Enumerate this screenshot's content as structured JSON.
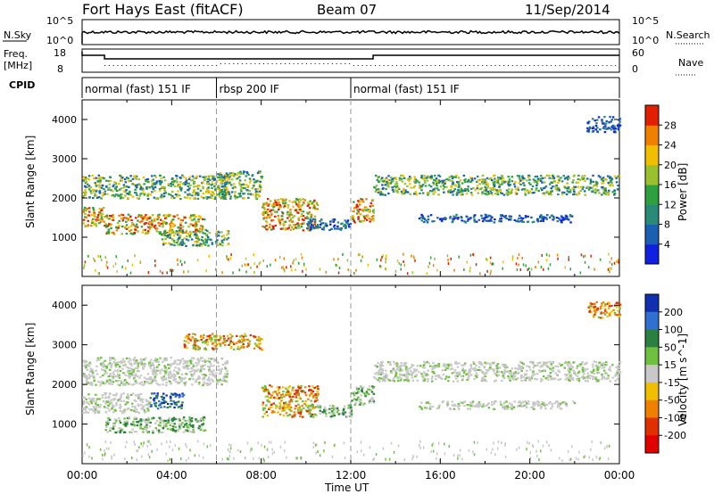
{
  "header": {
    "station": "Fort Hays East (fitACF)",
    "beam": "Beam 07",
    "date": "11/Sep/2014"
  },
  "top_panels": {
    "nsky_label": "N.Sky",
    "nsky_ticks": [
      "10^5",
      "10^0"
    ],
    "nsearch_label": "N.Search",
    "nsearch_ticks": [
      "10^5",
      "10^0"
    ],
    "freq_label": "Freq.",
    "freq_unit": "[MHz]",
    "freq_ticks": [
      "18",
      "8"
    ],
    "nave_label": "Nave",
    "nave_ticks": [
      "60",
      "0"
    ],
    "cpid_label": "CPID",
    "cpid_segments": [
      {
        "label": "normal (fast) 151 IF",
        "start_h": 0,
        "end_h": 6
      },
      {
        "label": "rbsp 200 IF",
        "start_h": 6,
        "end_h": 12
      },
      {
        "label": "normal (fast) 151 IF",
        "start_h": 12,
        "end_h": 24
      }
    ]
  },
  "chart_data": [
    {
      "type": "heatmap",
      "title": "",
      "xlabel": "Time UT",
      "ylabel": "Slant Range [km]",
      "xlim": [
        0,
        24
      ],
      "ylim": [
        0,
        4500
      ],
      "yticks": [
        "1000",
        "2000",
        "3000",
        "4000"
      ],
      "colorbar": {
        "label": "Power [dB]",
        "ticks": [
          "4",
          "8",
          "12",
          "16",
          "20",
          "24",
          "28"
        ],
        "colors": [
          "#1020e0",
          "#1a5fb0",
          "#2a8a78",
          "#2fa040",
          "#9ac030",
          "#f0c000",
          "#f08000",
          "#e02000"
        ]
      },
      "echo_regions": [
        {
          "t0": 0.0,
          "t1": 1.0,
          "r0": 1300,
          "r1": 1800,
          "level": "high"
        },
        {
          "t0": 1.0,
          "t1": 5.5,
          "r0": 1100,
          "r1": 1600,
          "level": "high"
        },
        {
          "t0": 0.0,
          "t1": 6.5,
          "r0": 2000,
          "r1": 2600,
          "level": "mid"
        },
        {
          "t0": 6.0,
          "t1": 8.0,
          "r0": 2000,
          "r1": 2700,
          "level": "mid"
        },
        {
          "t0": 3.5,
          "t1": 6.5,
          "r0": 800,
          "r1": 1200,
          "level": "mid"
        },
        {
          "t0": 8.0,
          "t1": 10.5,
          "r0": 1200,
          "r1": 2000,
          "level": "high"
        },
        {
          "t0": 10.0,
          "t1": 12.0,
          "r0": 1200,
          "r1": 1500,
          "level": "low"
        },
        {
          "t0": 12.0,
          "t1": 13.0,
          "r0": 1400,
          "r1": 2000,
          "level": "high"
        },
        {
          "t0": 13.0,
          "t1": 24.0,
          "r0": 2100,
          "r1": 2600,
          "level": "mid"
        },
        {
          "t0": 15.0,
          "t1": 22.0,
          "r0": 1400,
          "r1": 1600,
          "level": "low"
        },
        {
          "t0": 22.5,
          "t1": 24.0,
          "r0": 3700,
          "r1": 4100,
          "level": "low"
        }
      ]
    },
    {
      "type": "heatmap",
      "title": "",
      "xlabel": "Time UT",
      "ylabel": "Slant Range [km]",
      "xlim": [
        0,
        24
      ],
      "ylim": [
        0,
        4500
      ],
      "yticks": [
        "1000",
        "2000",
        "3000",
        "4000"
      ],
      "xticks": [
        "00:00",
        "04:00",
        "08:00",
        "12:00",
        "16:00",
        "20:00",
        "00:00"
      ],
      "colorbar": {
        "label": "Velocity [m s^-1]",
        "ticks": [
          "200",
          "100",
          "50",
          "15",
          "-15",
          "-50",
          "-100",
          "-200"
        ],
        "colors": [
          "#1030b0",
          "#3070d0",
          "#2a8040",
          "#70c040",
          "#c8c8c8",
          "#f0c000",
          "#f08000",
          "#e03000",
          "#e00000"
        ]
      },
      "echo_regions": [
        {
          "t0": 0.0,
          "t1": 6.5,
          "r0": 2000,
          "r1": 2700,
          "level": "ground"
        },
        {
          "t0": 0.0,
          "t1": 3.0,
          "r0": 1300,
          "r1": 1800,
          "level": "ground"
        },
        {
          "t0": 1.0,
          "t1": 5.5,
          "r0": 800,
          "r1": 1200,
          "level": "positive"
        },
        {
          "t0": 3.0,
          "t1": 4.5,
          "r0": 1400,
          "r1": 1800,
          "level": "strong_positive"
        },
        {
          "t0": 8.0,
          "t1": 10.5,
          "r0": 1200,
          "r1": 2000,
          "level": "negative"
        },
        {
          "t0": 10.0,
          "t1": 12.0,
          "r0": 1200,
          "r1": 1500,
          "level": "positive"
        },
        {
          "t0": 12.0,
          "t1": 13.0,
          "r0": 1500,
          "r1": 2000,
          "level": "positive"
        },
        {
          "t0": 13.0,
          "t1": 24.0,
          "r0": 2100,
          "r1": 2600,
          "level": "ground"
        },
        {
          "t0": 15.0,
          "t1": 22.0,
          "r0": 1400,
          "r1": 1600,
          "level": "ground"
        },
        {
          "t0": 4.5,
          "t1": 8.0,
          "r0": 2900,
          "r1": 3300,
          "level": "negative"
        },
        {
          "t0": 22.5,
          "t1": 24.0,
          "r0": 3700,
          "r1": 4100,
          "level": "negative"
        }
      ]
    }
  ]
}
